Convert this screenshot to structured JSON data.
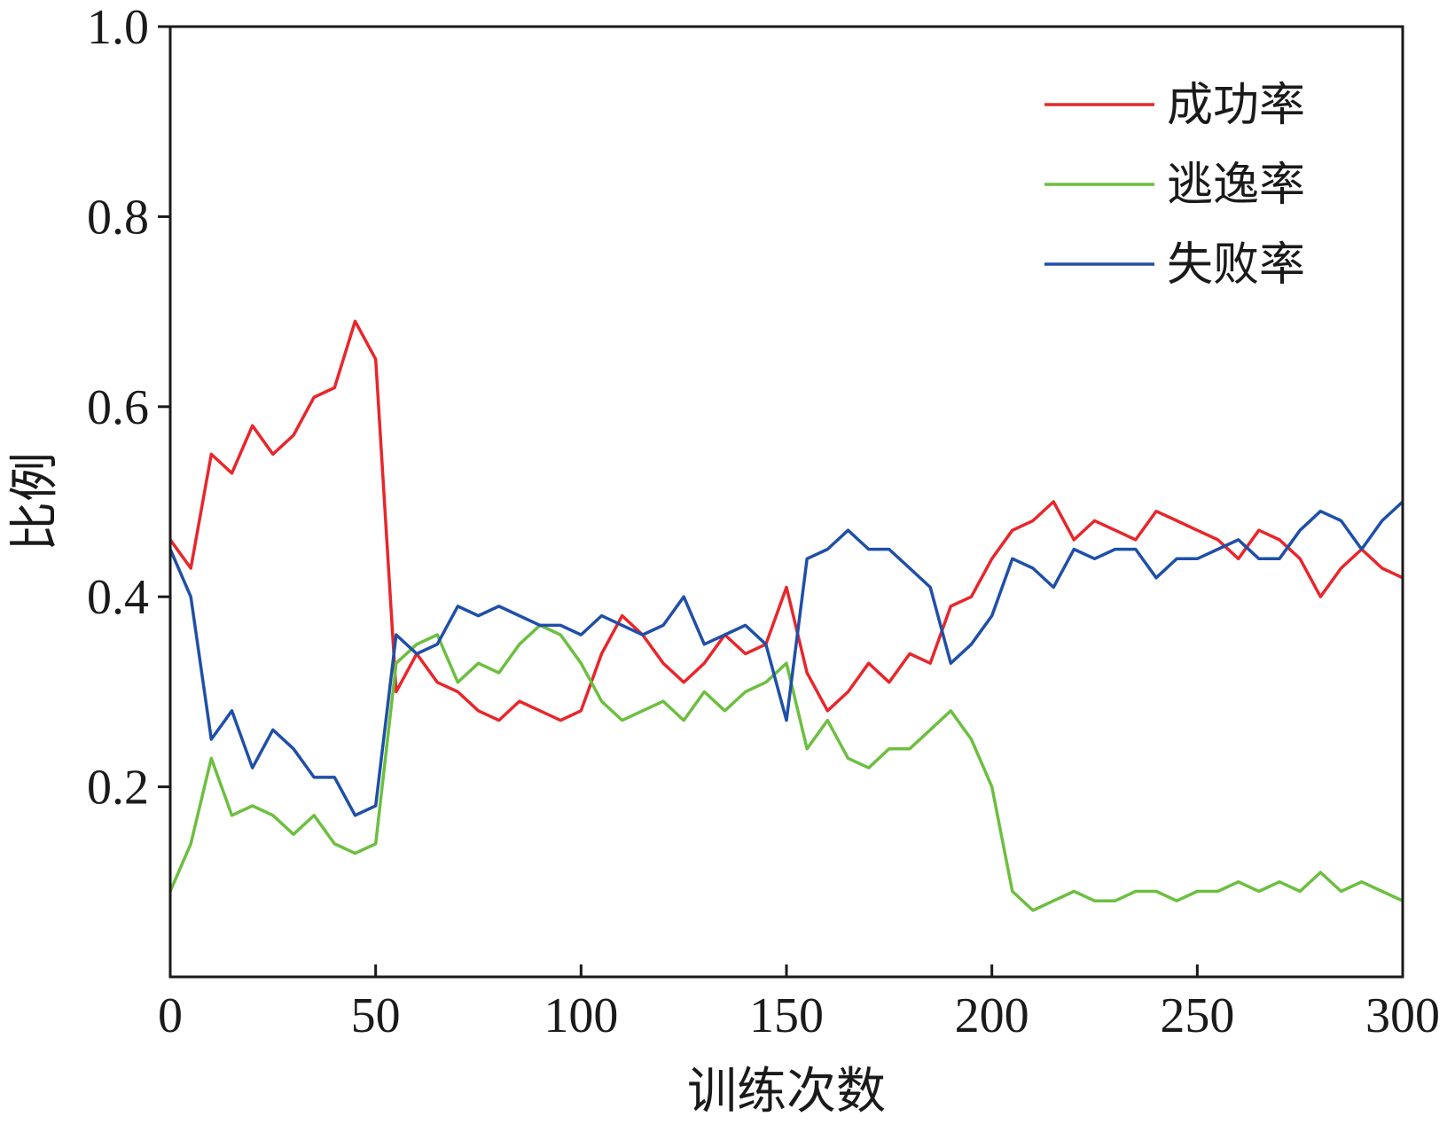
{
  "chart_data": {
    "type": "line",
    "xlabel": "训练次数",
    "ylabel": "比例",
    "xlim": [
      0,
      300
    ],
    "ylim": [
      0,
      1.0
    ],
    "x_ticks": [
      "0",
      "50",
      "100",
      "150",
      "200",
      "250",
      "300"
    ],
    "y_ticks": [
      "0.2",
      "0.4",
      "0.6",
      "0.8",
      "1.0"
    ],
    "grid": false,
    "legend_position": "top-right",
    "x": [
      0,
      5,
      10,
      15,
      20,
      25,
      30,
      35,
      40,
      45,
      50,
      55,
      60,
      65,
      70,
      75,
      80,
      85,
      90,
      95,
      100,
      105,
      110,
      115,
      120,
      125,
      130,
      135,
      140,
      145,
      150,
      155,
      160,
      165,
      170,
      175,
      180,
      185,
      190,
      195,
      200,
      205,
      210,
      215,
      220,
      225,
      230,
      235,
      240,
      245,
      250,
      255,
      260,
      265,
      270,
      275,
      280,
      285,
      290,
      295,
      300
    ],
    "series": [
      {
        "name": "成功率",
        "color": "#e8262b",
        "values": [
          0.46,
          0.43,
          0.55,
          0.53,
          0.58,
          0.55,
          0.57,
          0.61,
          0.62,
          0.69,
          0.65,
          0.3,
          0.34,
          0.31,
          0.3,
          0.28,
          0.27,
          0.29,
          0.28,
          0.27,
          0.28,
          0.34,
          0.38,
          0.36,
          0.33,
          0.31,
          0.33,
          0.36,
          0.34,
          0.35,
          0.41,
          0.32,
          0.28,
          0.3,
          0.33,
          0.31,
          0.34,
          0.33,
          0.39,
          0.4,
          0.44,
          0.47,
          0.48,
          0.5,
          0.46,
          0.48,
          0.47,
          0.46,
          0.49,
          0.48,
          0.47,
          0.46,
          0.44,
          0.47,
          0.46,
          0.44,
          0.4,
          0.43,
          0.45,
          0.43,
          0.42
        ]
      },
      {
        "name": "逃逸率",
        "color": "#6cbf3f",
        "values": [
          0.09,
          0.14,
          0.23,
          0.17,
          0.18,
          0.17,
          0.15,
          0.17,
          0.14,
          0.13,
          0.14,
          0.33,
          0.35,
          0.36,
          0.31,
          0.33,
          0.32,
          0.35,
          0.37,
          0.36,
          0.33,
          0.29,
          0.27,
          0.28,
          0.29,
          0.27,
          0.3,
          0.28,
          0.3,
          0.31,
          0.33,
          0.24,
          0.27,
          0.23,
          0.22,
          0.24,
          0.24,
          0.26,
          0.28,
          0.25,
          0.2,
          0.09,
          0.07,
          0.08,
          0.09,
          0.08,
          0.08,
          0.09,
          0.09,
          0.08,
          0.09,
          0.09,
          0.1,
          0.09,
          0.1,
          0.09,
          0.11,
          0.09,
          0.1,
          0.09,
          0.08
        ]
      },
      {
        "name": "失败率",
        "color": "#1f4fa8",
        "values": [
          0.45,
          0.4,
          0.25,
          0.28,
          0.22,
          0.26,
          0.24,
          0.21,
          0.21,
          0.17,
          0.18,
          0.36,
          0.34,
          0.35,
          0.39,
          0.38,
          0.39,
          0.38,
          0.37,
          0.37,
          0.36,
          0.38,
          0.37,
          0.36,
          0.37,
          0.4,
          0.35,
          0.36,
          0.37,
          0.35,
          0.27,
          0.44,
          0.45,
          0.47,
          0.45,
          0.45,
          0.43,
          0.41,
          0.33,
          0.35,
          0.38,
          0.44,
          0.43,
          0.41,
          0.45,
          0.44,
          0.45,
          0.45,
          0.42,
          0.44,
          0.44,
          0.45,
          0.46,
          0.44,
          0.44,
          0.47,
          0.49,
          0.48,
          0.45,
          0.48,
          0.5
        ]
      }
    ]
  }
}
